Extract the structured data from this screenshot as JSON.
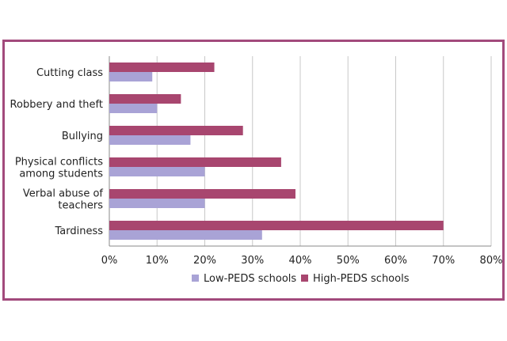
{
  "chart_data": {
    "type": "bar",
    "orientation": "horizontal",
    "categories": [
      [
        "Cutting class"
      ],
      [
        "Robbery and theft"
      ],
      [
        "Bullying"
      ],
      [
        "Physical conflicts",
        "among students"
      ],
      [
        "Verbal abuse of",
        "teachers"
      ],
      [
        "Tardiness"
      ]
    ],
    "series": [
      {
        "name": "Low-PEDS schools",
        "color": "#a9a3d6",
        "values": [
          9,
          10,
          17,
          20,
          20,
          32
        ]
      },
      {
        "name": "High-PEDS schools",
        "color": "#a8466f",
        "values": [
          22,
          15,
          28,
          36,
          39,
          70
        ]
      }
    ],
    "xlim": [
      0,
      80
    ],
    "xticks": [
      "0%",
      "10%",
      "20%",
      "30%",
      "40%",
      "50%",
      "60%",
      "70%",
      "80%"
    ],
    "grid": true,
    "legend_position": "bottom",
    "frame_color": "#a24a7c"
  }
}
